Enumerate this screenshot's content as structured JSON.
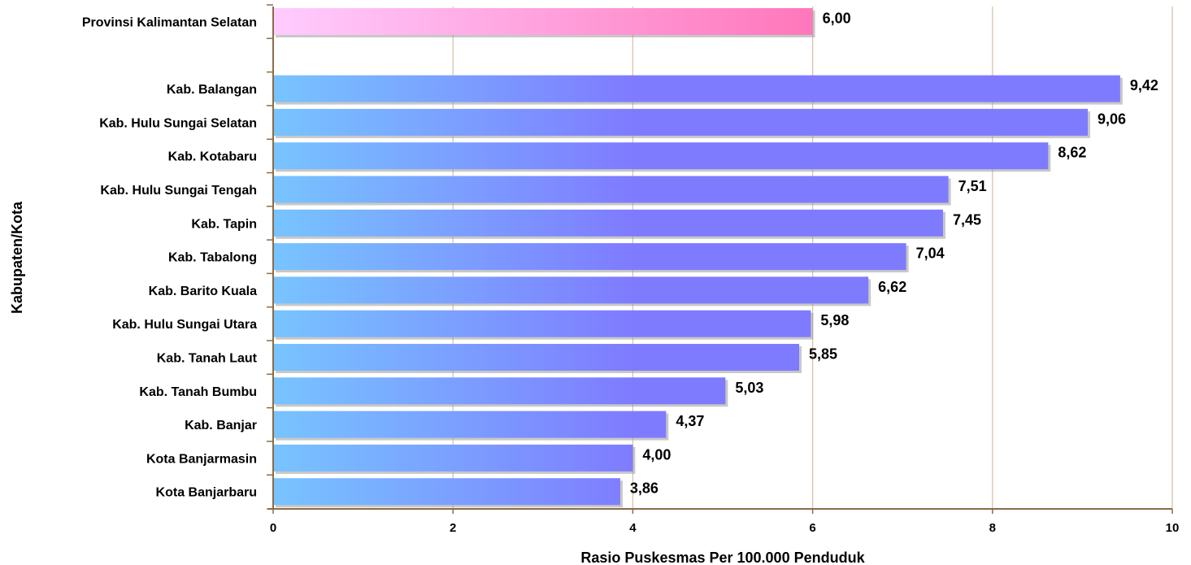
{
  "chart_data": {
    "type": "bar",
    "orientation": "horizontal",
    "xlabel": "Rasio Puskesmas Per 100.000 Penduduk",
    "ylabel": "Kabupaten/Kota",
    "xlim": [
      0,
      10
    ],
    "xticks": [
      "0",
      "2",
      "4",
      "6",
      "8",
      "10"
    ],
    "grid": "vertical",
    "categories": [
      "Provinsi Kalimantan Selatan",
      "",
      "Kab. Balangan",
      "Kab. Hulu Sungai Selatan",
      "Kab. Kotabaru",
      "Kab. Hulu Sungai Tengah",
      "Kab. Tapin",
      "Kab. Tabalong",
      "Kab. Barito Kuala",
      "Kab. Hulu Sungai Utara",
      "Kab. Tanah Laut",
      "Kab. Tanah Bumbu",
      "Kab. Banjar",
      "Kota Banjarmasin",
      "Kota Banjarbaru"
    ],
    "values": [
      6.0,
      null,
      9.42,
      9.06,
      8.62,
      7.51,
      7.45,
      7.04,
      6.62,
      5.98,
      5.85,
      5.03,
      4.37,
      4.0,
      3.86
    ],
    "value_labels": [
      "6,00",
      "",
      "9,42",
      "9,06",
      "8,62",
      "7,51",
      "7,45",
      "7,04",
      "6,62",
      "5,98",
      "5,85",
      "5,03",
      "4,37",
      "4,00",
      "3,86"
    ],
    "bar_colors": {
      "province": [
        "#ffccff",
        "#ff77bb"
      ],
      "district": [
        "#77c4ff",
        "#7f7bff"
      ]
    },
    "axis_color": "#8b6b4a",
    "grid_color": "#d8c4ad"
  }
}
